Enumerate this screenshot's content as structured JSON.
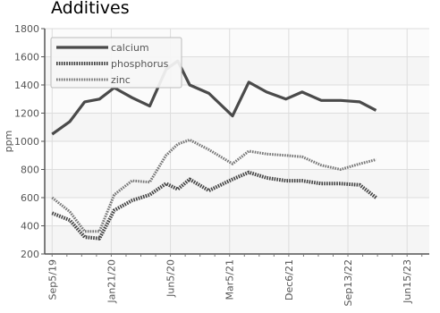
{
  "chart_data": {
    "type": "line",
    "title": "Additives",
    "xlabel": "",
    "ylabel": "ppm",
    "ylim": [
      200,
      1800
    ],
    "yticks": [
      200,
      400,
      600,
      800,
      1000,
      1200,
      1400,
      1600,
      1800
    ],
    "x_tick_labels": [
      "Sep5/19",
      "Jan21/20",
      "Jun5/20",
      "Mar5/21",
      "Dec6/21",
      "Sep13/22",
      "Jun15/23"
    ],
    "x_tick_positions": [
      0,
      4,
      8,
      12,
      16,
      20,
      24
    ],
    "x_count": 26,
    "grid": true,
    "legend_position": "top-left",
    "series": [
      {
        "name": "calcium",
        "style": "solid",
        "color": "#4a4a4a",
        "values": [
          1050,
          1140,
          1280,
          1300,
          1380,
          1310,
          1250,
          1510,
          1570,
          1400,
          1340,
          1180,
          1420,
          1350,
          1300,
          1350,
          1290,
          1290,
          1280,
          1220
        ]
      },
      {
        "name": "phosphorus",
        "style": "dotted",
        "color": "#4a4a4a",
        "values": [
          490,
          440,
          320,
          310,
          510,
          580,
          620,
          700,
          660,
          730,
          650,
          730,
          780,
          740,
          720,
          720,
          700,
          700,
          690,
          600
        ]
      },
      {
        "name": "zinc",
        "style": "dotted-light",
        "color": "#777777",
        "values": [
          600,
          500,
          360,
          360,
          620,
          720,
          710,
          900,
          980,
          1010,
          940,
          840,
          930,
          910,
          900,
          890,
          830,
          800,
          840,
          870
        ]
      }
    ],
    "x_index": [
      0,
      1.2,
      2.2,
      3.2,
      4.2,
      5.4,
      6.6,
      7.7,
      8.5,
      9.3,
      10.6,
      12.2,
      13.3,
      14.5,
      15.8,
      16.9,
      18.2,
      19.5,
      20.8,
      21.9
    ]
  }
}
